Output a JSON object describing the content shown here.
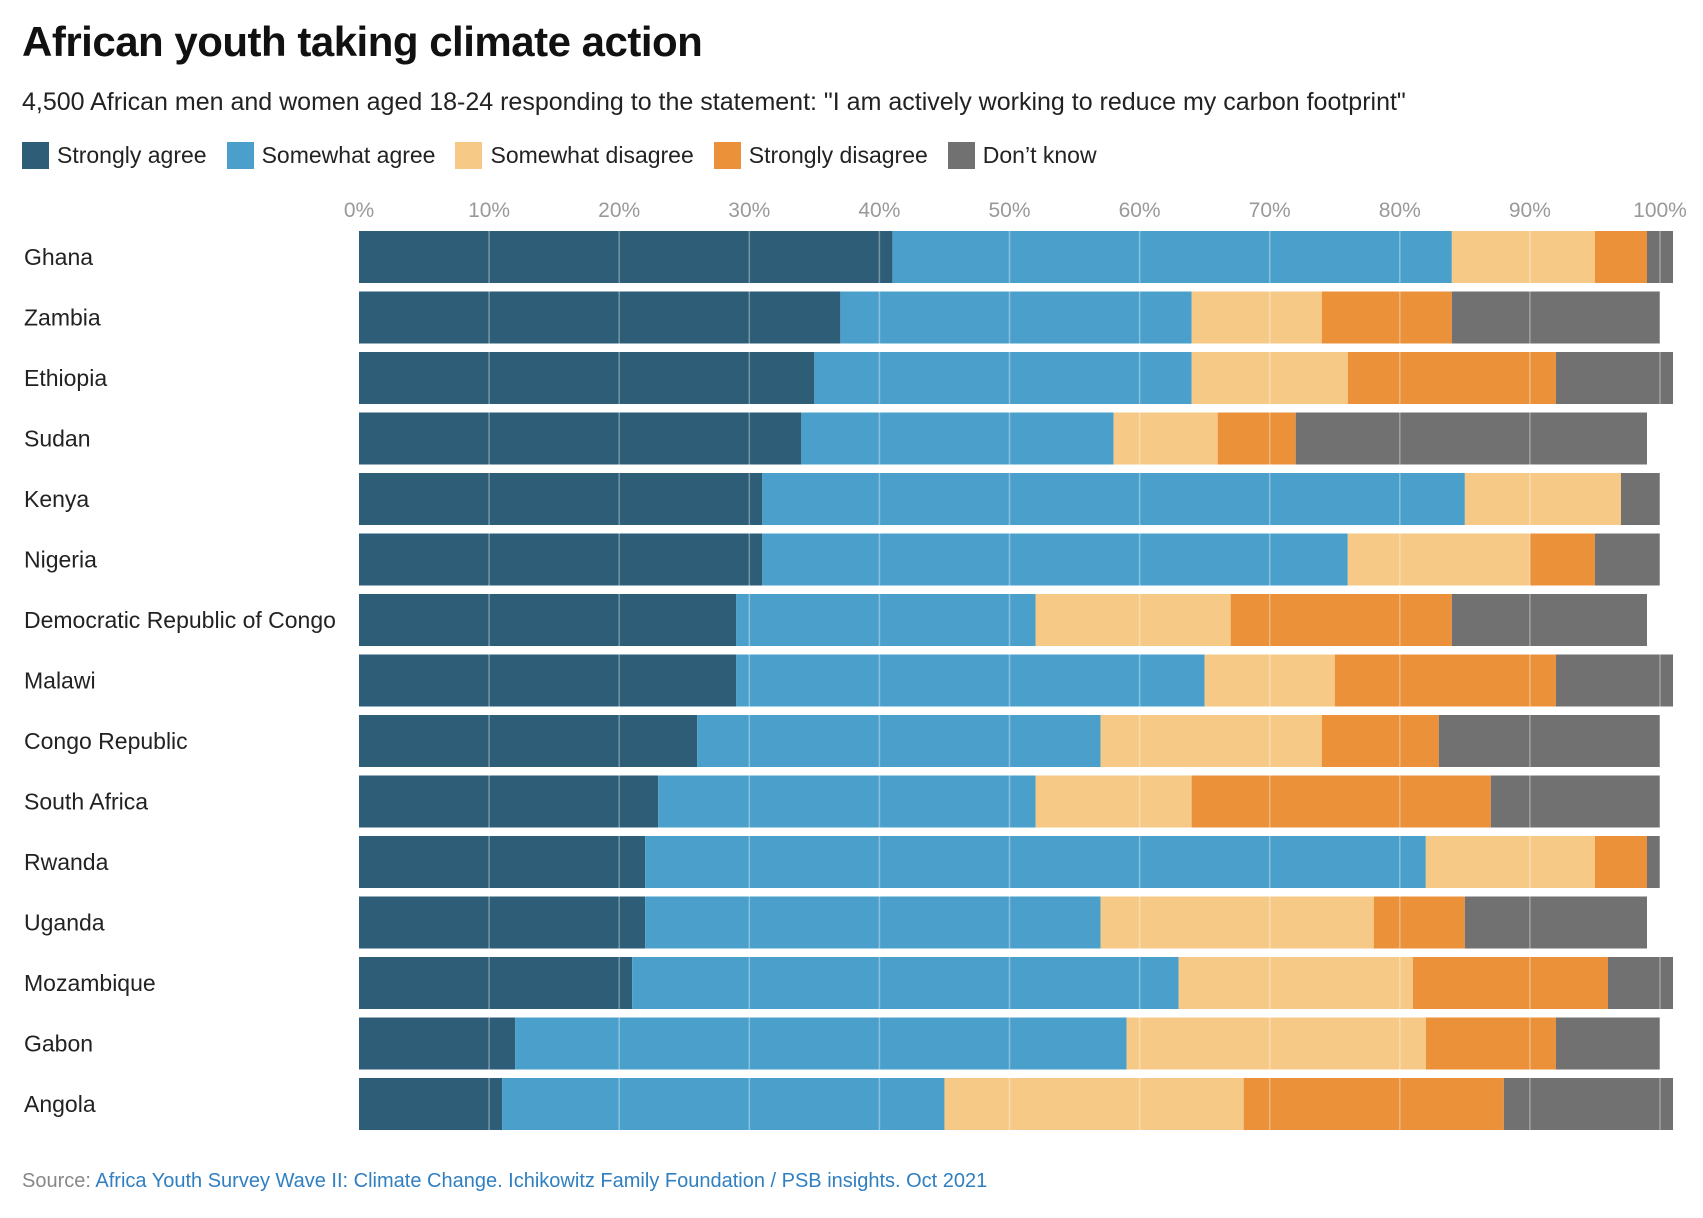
{
  "title": "African youth taking climate action",
  "subtitle": "4,500 African men and women aged 18-24 responding to the statement: \"I am actively working to reduce my carbon footprint\"",
  "source": {
    "label": "Source:",
    "link_text": "Africa Youth Survey Wave II: Climate Change. Ichikowitz Family Foundation / PSB insights. Oct 2021"
  },
  "chart_data": {
    "type": "bar",
    "orientation": "horizontal",
    "stacked": true,
    "xlim": [
      0,
      100
    ],
    "x_ticks": [
      "0%",
      "10%",
      "20%",
      "30%",
      "40%",
      "50%",
      "60%",
      "70%",
      "80%",
      "90%",
      "100%"
    ],
    "grid": true,
    "legend_position": "top-left",
    "categories": [
      "Ghana",
      "Zambia",
      "Ethiopia",
      "Sudan",
      "Kenya",
      "Nigeria",
      "Democratic Republic of Congo",
      "Malawi",
      "Congo Republic",
      "South Africa",
      "Rwanda",
      "Uganda",
      "Mozambique",
      "Gabon",
      "Angola"
    ],
    "series": [
      {
        "name": "Strongly agree",
        "color": "#2e5e77",
        "values": [
          41,
          37,
          35,
          34,
          31,
          31,
          29,
          29,
          26,
          23,
          22,
          22,
          21,
          12,
          11
        ]
      },
      {
        "name": "Somewhat agree",
        "color": "#4aa0cb",
        "values": [
          43,
          27,
          29,
          24,
          54,
          45,
          23,
          36,
          31,
          29,
          60,
          35,
          42,
          47,
          34
        ]
      },
      {
        "name": "Somewhat disagree",
        "color": "#f6ca86",
        "values": [
          11,
          10,
          12,
          8,
          12,
          14,
          15,
          10,
          17,
          12,
          13,
          21,
          18,
          23,
          23
        ]
      },
      {
        "name": "Strongly disagree",
        "color": "#ea913a",
        "values": [
          4,
          10,
          16,
          6,
          0,
          5,
          17,
          17,
          9,
          23,
          4,
          7,
          15,
          10,
          20
        ]
      },
      {
        "name": "Don’t know",
        "color": "#717171",
        "values": [
          2,
          16,
          9,
          27,
          3,
          5,
          15,
          9,
          17,
          13,
          1,
          14,
          5,
          8,
          13
        ]
      }
    ]
  }
}
